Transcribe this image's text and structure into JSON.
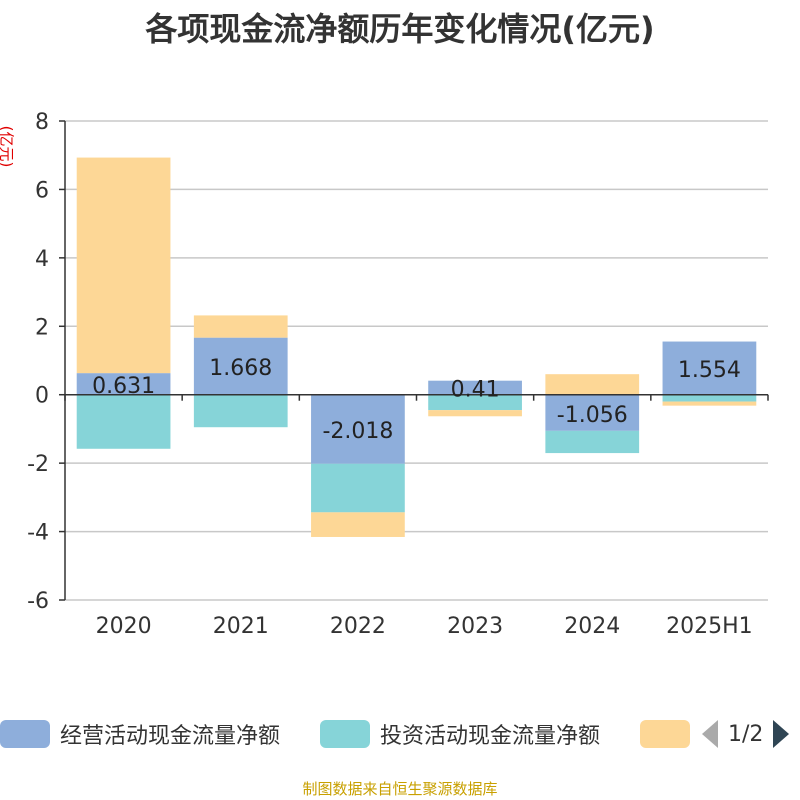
{
  "title": "各项现金流净额历年变化情况(亿元)",
  "unit_label": "(亿元)",
  "footer": "制图数据来自恒生聚源数据库",
  "legend": {
    "items": [
      {
        "label": "经营活动现金流量净额",
        "color": "#8eaedb"
      },
      {
        "label": "投资活动现金流量净额",
        "color": "#86d4d8"
      },
      {
        "label": "",
        "color": "#fdd796"
      }
    ],
    "pager": {
      "page": "1/2",
      "prev_color": "#aaaaaa",
      "next_color": "#2f4554"
    }
  },
  "chart_data": {
    "type": "bar",
    "stacked": true,
    "categories": [
      "2020",
      "2021",
      "2022",
      "2023",
      "2024",
      "2025H1"
    ],
    "series": [
      {
        "name": "经营活动现金流量净额",
        "color": "#8eaedb",
        "values": [
          0.631,
          1.668,
          -2.018,
          0.41,
          -1.056,
          1.554
        ]
      },
      {
        "name": "投资活动现金流量净额",
        "color": "#86d4d8",
        "values": [
          -1.58,
          -0.95,
          -1.42,
          -0.45,
          -0.65,
          -0.2
        ]
      },
      {
        "name": "",
        "color": "#fdd796",
        "values": [
          6.3,
          0.65,
          -0.72,
          -0.18,
          0.6,
          -0.12
        ]
      }
    ],
    "data_labels": [
      "0.631",
      "1.668",
      "-2.018",
      "0.41",
      "-1.056",
      "1.554"
    ],
    "ylim": [
      -6,
      8
    ],
    "yticks": [
      -6,
      -4,
      -2,
      0,
      2,
      4,
      6,
      8
    ],
    "ytick_labels": [
      "-6",
      "-4",
      "-2",
      "0",
      "2",
      "4",
      "6",
      "8"
    ],
    "grid": true
  }
}
